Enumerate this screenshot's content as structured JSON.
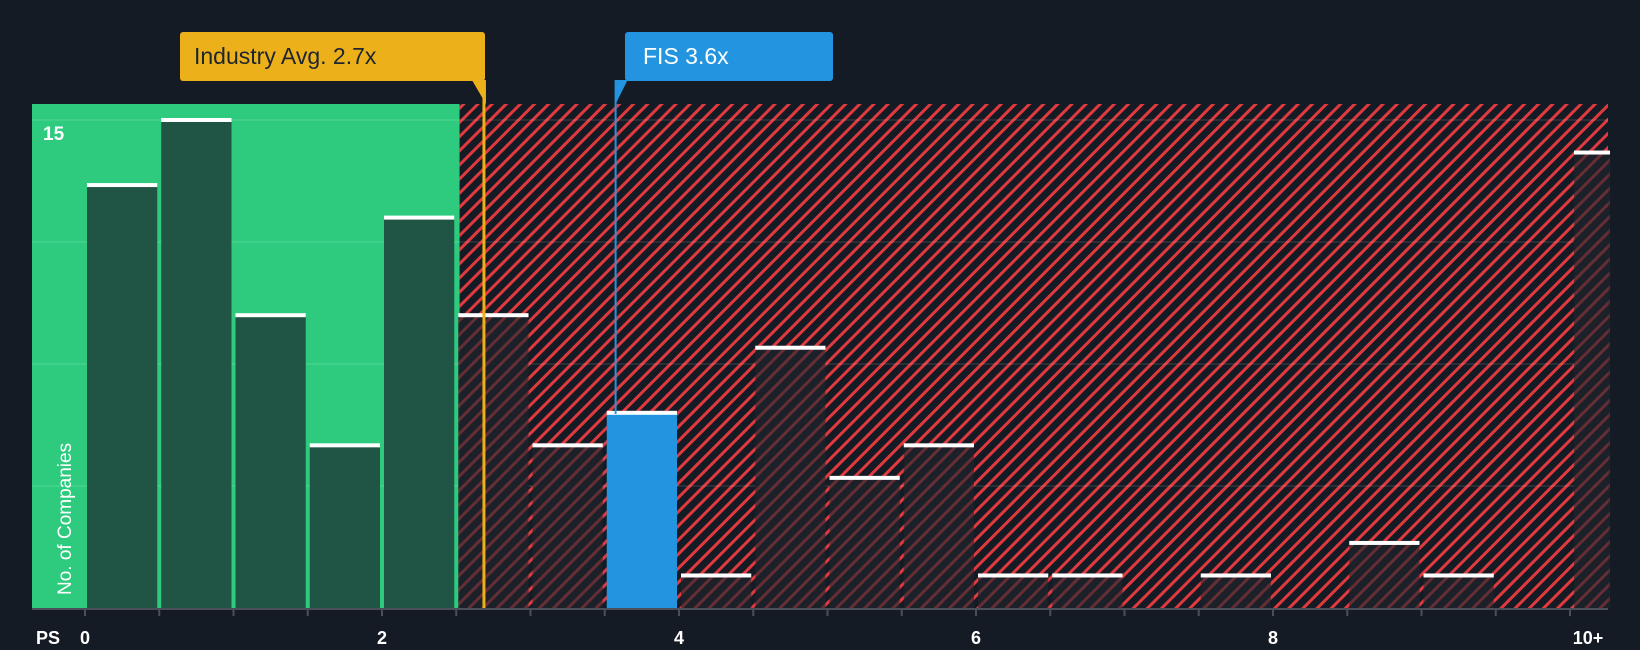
{
  "callouts": {
    "industry": {
      "label": "Industry Avg. 2.7x",
      "value": 2.7,
      "color": "#ecb11a"
    },
    "company": {
      "label": "FIS 3.6x",
      "value": 3.6,
      "color": "#2394e0"
    }
  },
  "axes": {
    "x_name": "PS",
    "x_ticks": [
      "0",
      "2",
      "4",
      "6",
      "8",
      "10+"
    ],
    "y_title": "No. of Companies",
    "y_tick": "15"
  },
  "colors": {
    "background": "#151b24",
    "fair_zone": "#2ecb7f",
    "fair_bar": "#1f4a3f",
    "expensive_hatch": "#e0393e",
    "expensive_bar": "#1c2029",
    "company_bar": "#2394e0",
    "bar_cap": "#ffffff",
    "industry_line": "#ecb11a"
  },
  "chart_data": {
    "type": "bar",
    "title": "",
    "xlabel": "PS",
    "ylabel": "No. of Companies",
    "categories": [
      "0-0.5",
      "0.5-1",
      "1-1.5",
      "1.5-2",
      "2-2.5",
      "2.5-3",
      "3-3.5",
      "3.5-4",
      "4-4.5",
      "4.5-5",
      "5-5.5",
      "5.5-6",
      "6-6.5",
      "6.5-7",
      "7-7.5",
      "7.5-8",
      "8-8.5",
      "8.5-9",
      "9-9.5",
      "9.5-10",
      "10+"
    ],
    "values": [
      13,
      15,
      9,
      5,
      12,
      9,
      5,
      6,
      1,
      8,
      4,
      5,
      1,
      1,
      0,
      1,
      0,
      2,
      1,
      0,
      14
    ],
    "highlight_bin": "3.5-4",
    "industry_average": 2.7,
    "company_value": 3.6,
    "company_name": "FIS",
    "ylim": [
      0,
      15.5
    ],
    "y_gridlines": [
      3.75,
      7.5,
      11.25,
      15
    ],
    "x_tick_labels": [
      "0",
      "2",
      "4",
      "6",
      "8",
      "10+"
    ],
    "fair_value_boundary": 2.55
  }
}
